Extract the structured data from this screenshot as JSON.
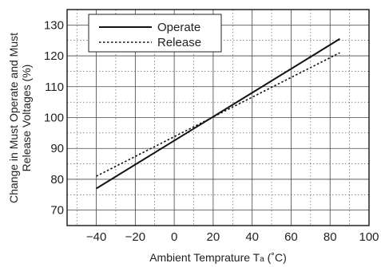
{
  "chart_data": {
    "type": "line",
    "xlabel_main": "Ambient Temprature T",
    "xlabel_sub": "a",
    "xlabel_unit": " (˚C)",
    "ylabel_line1": "Change in Must Operate and Must",
    "ylabel_line2": "Release Voltages (%)",
    "x_ticks": [
      -40,
      -20,
      0,
      20,
      40,
      60,
      80,
      100
    ],
    "x_tick_labels": [
      "−40",
      "−20",
      "0",
      "20",
      "40",
      "60",
      "80",
      "100"
    ],
    "y_ticks": [
      70,
      80,
      90,
      100,
      110,
      120,
      130
    ],
    "y_tick_labels": [
      "70",
      "80",
      "90",
      "100",
      "110",
      "120",
      "130"
    ],
    "xlim": [
      -55,
      100
    ],
    "ylim": [
      65,
      135
    ],
    "grid": true,
    "legend_position": "top-left",
    "series": [
      {
        "name": "Operate",
        "style": "solid",
        "x": [
          -40,
          85
        ],
        "y": [
          77,
          125.5
        ]
      },
      {
        "name": "Release",
        "style": "dotted",
        "x": [
          -40,
          85
        ],
        "y": [
          81,
          121
        ]
      }
    ]
  }
}
